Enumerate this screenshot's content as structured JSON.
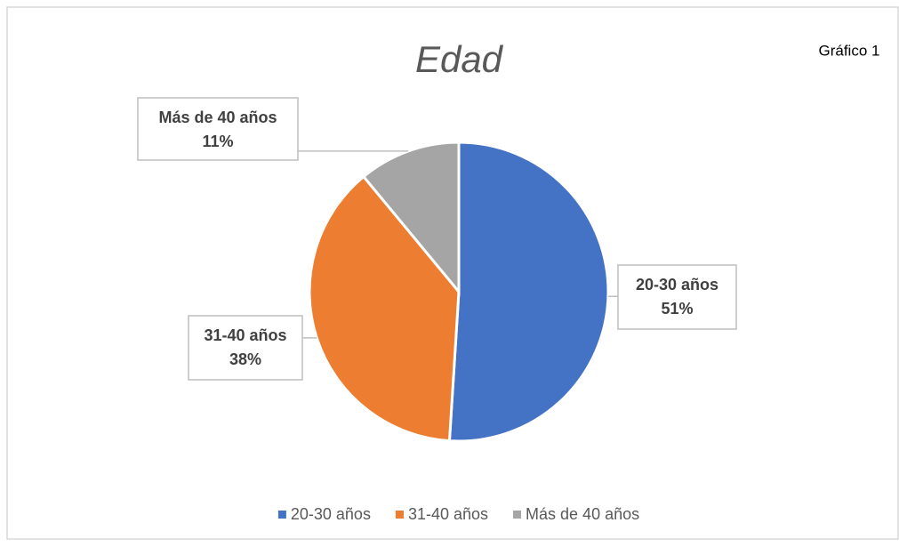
{
  "chart_data": {
    "type": "pie",
    "title": "Edad",
    "annotation": "Gráfico 1",
    "categories": [
      "20-30 años",
      "31-40 años",
      "Más de 40 años"
    ],
    "values": [
      51,
      38,
      11
    ],
    "value_labels": [
      "51%",
      "38%",
      "11%"
    ],
    "colors": [
      "#4472c4",
      "#ed7d31",
      "#a5a5a5"
    ],
    "legend": "bottom"
  }
}
